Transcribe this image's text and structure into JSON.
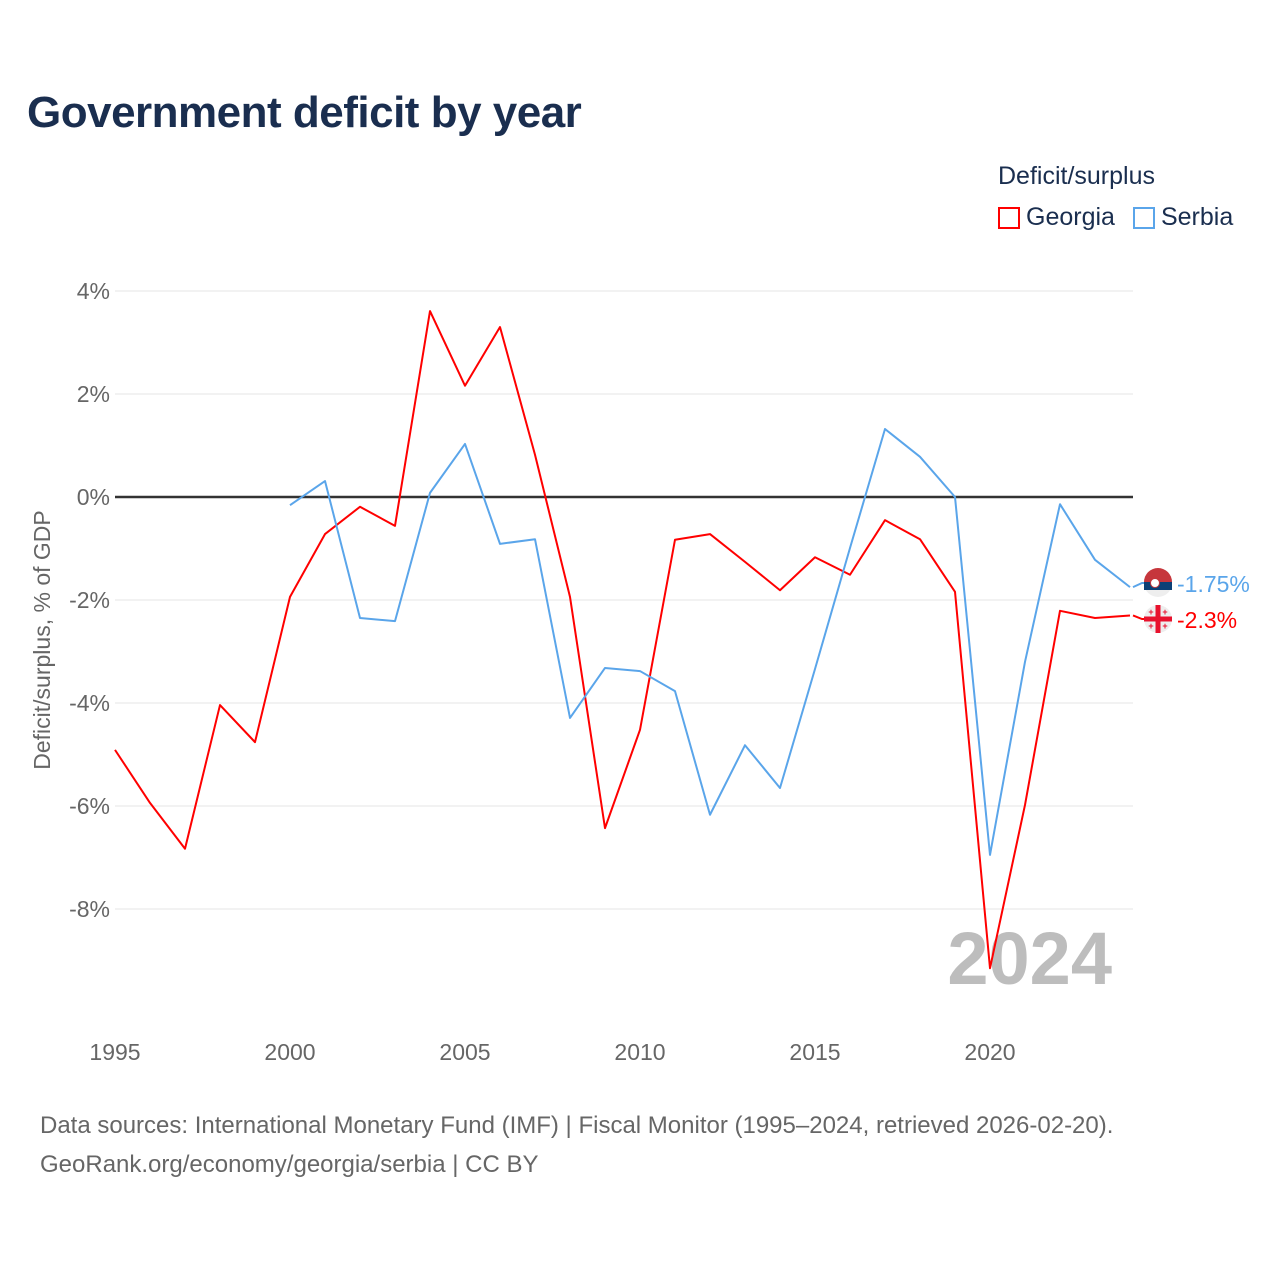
{
  "title": "Government deficit by year",
  "legend": {
    "title": "Deficit/surplus",
    "items": [
      {
        "name": "Georgia",
        "color": "#ff0000"
      },
      {
        "name": "Serbia",
        "color": "#5aa5ea"
      }
    ]
  },
  "footer": {
    "line1": "Data sources: International Monetary Fund (IMF) | Fiscal Monitor (1995–2024, retrieved 2026-02-20).",
    "line2": "GeoRank.org/economy/georgia/serbia | CC BY"
  },
  "chart_data": {
    "type": "line",
    "title": "Government deficit by year",
    "ylabel": "Deficit/surplus, % of GDP",
    "xlabel": "",
    "xlim": [
      1995,
      2024
    ],
    "ylim": [
      -10,
      4.4
    ],
    "xticks": [
      "1995",
      "2000",
      "2005",
      "2010",
      "2015",
      "2020"
    ],
    "yticks": [
      {
        "v": 4,
        "label": "4%"
      },
      {
        "v": 2,
        "label": "2%"
      },
      {
        "v": 0,
        "label": "0%"
      },
      {
        "v": -2,
        "label": "-2%"
      },
      {
        "v": -4,
        "label": "-4%"
      },
      {
        "v": -6,
        "label": "-6%"
      },
      {
        "v": -8,
        "label": "-8%"
      }
    ],
    "year_watermark": "2024",
    "grid": true,
    "series": [
      {
        "name": "Georgia",
        "color": "#ff0000",
        "end_label": "-2.3%",
        "x": [
          1995,
          1996,
          1997,
          1998,
          1999,
          2000,
          2001,
          2002,
          2003,
          2004,
          2005,
          2006,
          2007,
          2008,
          2009,
          2010,
          2011,
          2012,
          2013,
          2014,
          2015,
          2016,
          2017,
          2018,
          2019,
          2020,
          2021,
          2022,
          2023,
          2024
        ],
        "values": [
          -4.91,
          -5.94,
          -6.83,
          -4.04,
          -4.76,
          -1.94,
          -0.72,
          -0.19,
          -0.56,
          3.61,
          2.16,
          3.3,
          0.82,
          -1.94,
          -6.43,
          -4.52,
          -0.83,
          -0.72,
          -1.26,
          -1.81,
          -1.17,
          -1.51,
          -0.45,
          -0.82,
          -1.84,
          -9.15,
          -5.98,
          -2.21,
          -2.35,
          -2.3
        ]
      },
      {
        "name": "Serbia",
        "color": "#5aa5ea",
        "end_label": "-1.75%",
        "x": [
          2000,
          2001,
          2002,
          2003,
          2004,
          2005,
          2006,
          2007,
          2008,
          2009,
          2010,
          2011,
          2012,
          2013,
          2014,
          2015,
          2016,
          2017,
          2018,
          2019,
          2020,
          2021,
          2022,
          2023,
          2024
        ],
        "values": [
          -0.16,
          0.31,
          -2.35,
          -2.41,
          0.08,
          1.03,
          -0.91,
          -0.82,
          -4.29,
          -3.32,
          -3.38,
          -3.77,
          -6.17,
          -4.82,
          -5.65,
          -3.34,
          -0.99,
          1.32,
          0.78,
          0.0,
          -6.95,
          -3.2,
          -0.14,
          -1.22,
          -1.75
        ]
      }
    ]
  }
}
